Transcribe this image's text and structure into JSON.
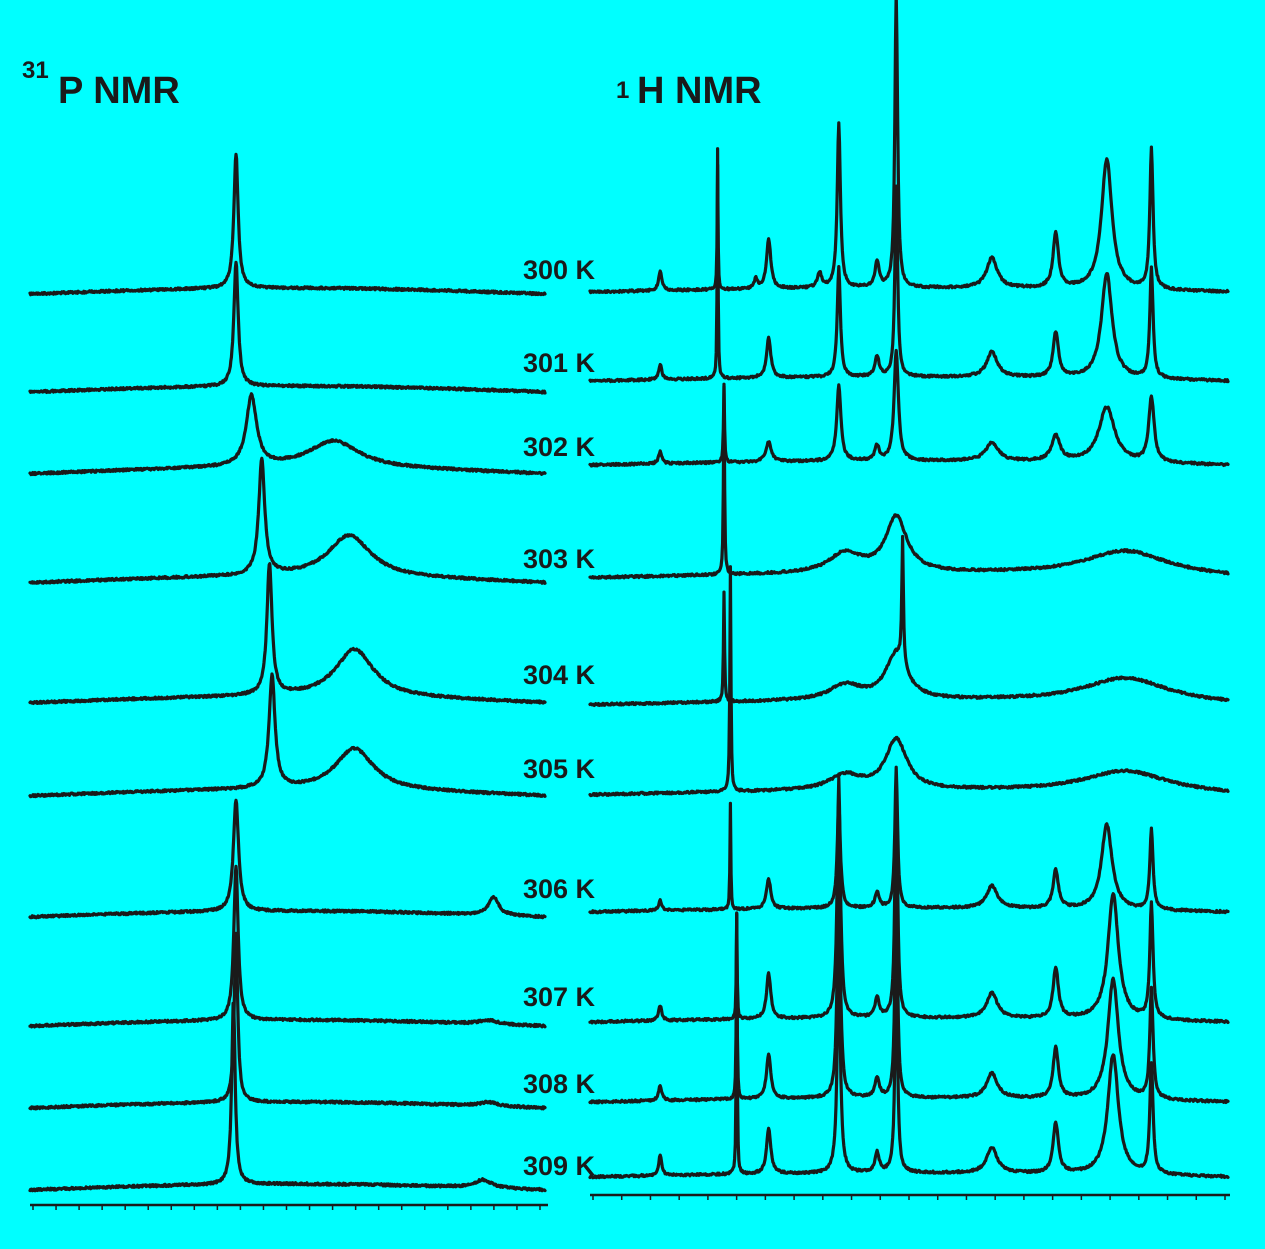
{
  "chart_data": [
    {
      "type": "line",
      "title_sup": "31",
      "title": "P NMR",
      "series": [
        {
          "name": "300 K",
          "peaks": [
            {
              "x": 0.4,
              "h": 135,
              "w": 0.005
            }
          ]
        },
        {
          "name": "301 K",
          "peaks": [
            {
              "x": 0.4,
              "h": 125,
              "w": 0.005
            }
          ]
        },
        {
          "name": "302 K",
          "peaks": [
            {
              "x": 0.43,
              "h": 70,
              "w": 0.012
            },
            {
              "x": 0.59,
              "h": 27,
              "w": 0.06
            }
          ]
        },
        {
          "name": "303 K",
          "peaks": [
            {
              "x": 0.45,
              "h": 115,
              "w": 0.007
            },
            {
              "x": 0.62,
              "h": 42,
              "w": 0.05
            }
          ]
        },
        {
          "name": "304 K",
          "peaks": [
            {
              "x": 0.465,
              "h": 130,
              "w": 0.006
            },
            {
              "x": 0.63,
              "h": 48,
              "w": 0.045
            }
          ]
        },
        {
          "name": "305 K",
          "peaks": [
            {
              "x": 0.47,
              "h": 112,
              "w": 0.007
            },
            {
              "x": 0.63,
              "h": 42,
              "w": 0.045
            }
          ]
        },
        {
          "name": "306 K",
          "peaks": [
            {
              "x": 0.4,
              "h": 112,
              "w": 0.006
            },
            {
              "x": 0.9,
              "h": 18,
              "w": 0.012
            }
          ]
        },
        {
          "name": "307 K",
          "peaks": [
            {
              "x": 0.4,
              "h": 155,
              "w": 0.005
            },
            {
              "x": 0.89,
              "h": 4,
              "w": 0.02
            }
          ]
        },
        {
          "name": "308 K",
          "peaks": [
            {
              "x": 0.4,
              "h": 170,
              "w": 0.004
            },
            {
              "x": 0.89,
              "h": 4,
              "w": 0.02
            }
          ]
        },
        {
          "name": "309 K",
          "peaks": [
            {
              "x": 0.395,
              "h": 185,
              "w": 0.004
            },
            {
              "x": 0.88,
              "h": 8,
              "w": 0.02
            }
          ]
        }
      ]
    },
    {
      "type": "line",
      "title_sup": "1",
      "title": "H NMR",
      "series": [
        {
          "name": "300 K",
          "peaks": [
            {
              "x": 0.11,
              "h": 20,
              "w": 0.003
            },
            {
              "x": 0.2,
              "h": 125,
              "w": 0.0008
            },
            {
              "x": 0.26,
              "h": 10,
              "w": 0.003
            },
            {
              "x": 0.28,
              "h": 50,
              "w": 0.004
            },
            {
              "x": 0.36,
              "h": 15,
              "w": 0.004
            },
            {
              "x": 0.39,
              "h": 165,
              "w": 0.003
            },
            {
              "x": 0.45,
              "h": 25,
              "w": 0.004
            },
            {
              "x": 0.48,
              "h": 295,
              "w": 0.0025
            },
            {
              "x": 0.63,
              "h": 30,
              "w": 0.01
            },
            {
              "x": 0.73,
              "h": 55,
              "w": 0.005
            },
            {
              "x": 0.81,
              "h": 130,
              "w": 0.01
            },
            {
              "x": 0.88,
              "h": 140,
              "w": 0.003
            }
          ]
        },
        {
          "name": "301 K",
          "peaks": [
            {
              "x": 0.11,
              "h": 15,
              "w": 0.003
            },
            {
              "x": 0.2,
              "h": 230,
              "w": 0.0008
            },
            {
              "x": 0.28,
              "h": 40,
              "w": 0.004
            },
            {
              "x": 0.39,
              "h": 110,
              "w": 0.003
            },
            {
              "x": 0.45,
              "h": 20,
              "w": 0.004
            },
            {
              "x": 0.48,
              "h": 190,
              "w": 0.0025
            },
            {
              "x": 0.63,
              "h": 25,
              "w": 0.01
            },
            {
              "x": 0.73,
              "h": 45,
              "w": 0.005
            },
            {
              "x": 0.81,
              "h": 105,
              "w": 0.01
            },
            {
              "x": 0.88,
              "h": 110,
              "w": 0.003
            }
          ]
        },
        {
          "name": "302 K",
          "peaks": [
            {
              "x": 0.11,
              "h": 12,
              "w": 0.003
            },
            {
              "x": 0.21,
              "h": 75,
              "w": 0.001
            },
            {
              "x": 0.28,
              "h": 20,
              "w": 0.005
            },
            {
              "x": 0.39,
              "h": 75,
              "w": 0.004
            },
            {
              "x": 0.45,
              "h": 15,
              "w": 0.004
            },
            {
              "x": 0.48,
              "h": 110,
              "w": 0.004
            },
            {
              "x": 0.63,
              "h": 18,
              "w": 0.012
            },
            {
              "x": 0.73,
              "h": 25,
              "w": 0.008
            },
            {
              "x": 0.81,
              "h": 55,
              "w": 0.015
            },
            {
              "x": 0.88,
              "h": 65,
              "w": 0.005
            }
          ]
        },
        {
          "name": "303 K",
          "peaks": [
            {
              "x": 0.21,
              "h": 190,
              "w": 0.001
            },
            {
              "x": 0.48,
              "h": 55,
              "w": 0.02
            },
            {
              "x": 0.4,
              "h": 20,
              "w": 0.03
            },
            {
              "x": 0.84,
              "h": 25,
              "w": 0.08
            }
          ]
        },
        {
          "name": "304 K",
          "peaks": [
            {
              "x": 0.21,
              "h": 110,
              "w": 0.001
            },
            {
              "x": 0.49,
              "h": 125,
              "w": 0.0015
            },
            {
              "x": 0.48,
              "h": 45,
              "w": 0.02
            },
            {
              "x": 0.4,
              "h": 15,
              "w": 0.03
            },
            {
              "x": 0.84,
              "h": 25,
              "w": 0.08
            }
          ]
        },
        {
          "name": "305 K",
          "peaks": [
            {
              "x": 0.22,
              "h": 225,
              "w": 0.001
            },
            {
              "x": 0.48,
              "h": 50,
              "w": 0.02
            },
            {
              "x": 0.4,
              "h": 15,
              "w": 0.03
            },
            {
              "x": 0.84,
              "h": 22,
              "w": 0.08
            }
          ]
        },
        {
          "name": "306 K",
          "peaks": [
            {
              "x": 0.11,
              "h": 10,
              "w": 0.003
            },
            {
              "x": 0.22,
              "h": 105,
              "w": 0.0008
            },
            {
              "x": 0.28,
              "h": 30,
              "w": 0.004
            },
            {
              "x": 0.39,
              "h": 105,
              "w": 0.003
            },
            {
              "x": 0.45,
              "h": 15,
              "w": 0.004
            },
            {
              "x": 0.48,
              "h": 140,
              "w": 0.0025
            },
            {
              "x": 0.63,
              "h": 22,
              "w": 0.01
            },
            {
              "x": 0.73,
              "h": 38,
              "w": 0.005
            },
            {
              "x": 0.81,
              "h": 85,
              "w": 0.01
            },
            {
              "x": 0.88,
              "h": 80,
              "w": 0.003
            }
          ]
        },
        {
          "name": "307 K",
          "peaks": [
            {
              "x": 0.11,
              "h": 15,
              "w": 0.003
            },
            {
              "x": 0.23,
              "h": 105,
              "w": 0.0008
            },
            {
              "x": 0.28,
              "h": 45,
              "w": 0.004
            },
            {
              "x": 0.39,
              "h": 240,
              "w": 0.003
            },
            {
              "x": 0.45,
              "h": 20,
              "w": 0.004
            },
            {
              "x": 0.48,
              "h": 230,
              "w": 0.0025
            },
            {
              "x": 0.63,
              "h": 25,
              "w": 0.01
            },
            {
              "x": 0.73,
              "h": 50,
              "w": 0.005
            },
            {
              "x": 0.82,
              "h": 125,
              "w": 0.01
            },
            {
              "x": 0.88,
              "h": 115,
              "w": 0.003
            }
          ]
        },
        {
          "name": "308 K",
          "peaks": [
            {
              "x": 0.11,
              "h": 15,
              "w": 0.003
            },
            {
              "x": 0.23,
              "h": 185,
              "w": 0.0008
            },
            {
              "x": 0.28,
              "h": 45,
              "w": 0.004
            },
            {
              "x": 0.39,
              "h": 225,
              "w": 0.003
            },
            {
              "x": 0.45,
              "h": 20,
              "w": 0.004
            },
            {
              "x": 0.48,
              "h": 210,
              "w": 0.0025
            },
            {
              "x": 0.63,
              "h": 25,
              "w": 0.01
            },
            {
              "x": 0.73,
              "h": 50,
              "w": 0.005
            },
            {
              "x": 0.82,
              "h": 120,
              "w": 0.01
            },
            {
              "x": 0.88,
              "h": 110,
              "w": 0.003
            }
          ]
        },
        {
          "name": "309 K",
          "peaks": [
            {
              "x": 0.11,
              "h": 20,
              "w": 0.003
            },
            {
              "x": 0.23,
              "h": 260,
              "w": 0.0008
            },
            {
              "x": 0.28,
              "h": 45,
              "w": 0.004
            },
            {
              "x": 0.39,
              "h": 215,
              "w": 0.003
            },
            {
              "x": 0.45,
              "h": 20,
              "w": 0.004
            },
            {
              "x": 0.48,
              "h": 200,
              "w": 0.0025
            },
            {
              "x": 0.63,
              "h": 25,
              "w": 0.01
            },
            {
              "x": 0.73,
              "h": 50,
              "w": 0.005
            },
            {
              "x": 0.82,
              "h": 120,
              "w": 0.01
            },
            {
              "x": 0.88,
              "h": 110,
              "w": 0.003
            }
          ]
        }
      ]
    }
  ],
  "temperature_labels": [
    "300 K",
    "301 K",
    "302 K",
    "303 K",
    "304 K",
    "305 K",
    "306 K",
    "307 K",
    "308 K",
    "309 K"
  ],
  "colors": {
    "background": "#00FFFF",
    "trace": "#1a1a1a"
  }
}
